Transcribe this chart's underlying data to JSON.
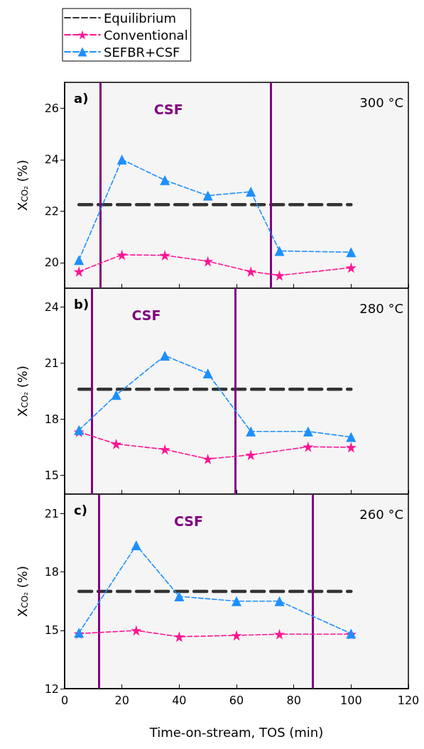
{
  "chart_data": [
    {
      "type": "line",
      "title": "a)",
      "subtitle": "300 °C",
      "ylabel": "X$_{CO₂}$ (%)",
      "xlim": [
        0,
        120
      ],
      "xticks": [
        0,
        20,
        40,
        60,
        80,
        100,
        120
      ],
      "ylim": [
        19,
        27
      ],
      "yticks": [
        20,
        22,
        24,
        26
      ],
      "tick_labels": "y",
      "legend": "top left",
      "line_style": "dashed",
      "grid": false,
      "series": [
        {
          "name": "Equilibrium",
          "color": "#333333",
          "marker": "none",
          "x": [
            5,
            100
          ],
          "values": [
            22.25,
            22.25
          ]
        },
        {
          "name": "Conventional",
          "color": "#ff1493",
          "marker": "star",
          "x": [
            5,
            20,
            35,
            50,
            65,
            75,
            100
          ],
          "values": [
            19.65,
            20.3,
            20.28,
            20.05,
            19.65,
            19.5,
            19.8
          ]
        },
        {
          "name": "SEFBR+CSF",
          "color": "#1e8fff",
          "marker": "triangle",
          "x": [
            5,
            20,
            35,
            50,
            65,
            75,
            100
          ],
          "values": [
            20.1,
            24.0,
            23.2,
            22.6,
            22.75,
            20.45,
            20.4
          ]
        }
      ],
      "ref_lines": [
        {
          "axis": "x",
          "value": 12.5,
          "color": "#800080"
        },
        {
          "axis": "x",
          "value": 72,
          "color": "#800080"
        }
      ],
      "annotations": [
        "CSF"
      ]
    },
    {
      "type": "line",
      "title": "b)",
      "subtitle": "280 °C",
      "ylabel": "X$_{CO₂}$ (%)",
      "xlim": [
        0,
        120
      ],
      "xticks": [
        0,
        20,
        40,
        60,
        80,
        100,
        120
      ],
      "ylim": [
        14,
        25
      ],
      "yticks": [
        15,
        18,
        21,
        24
      ],
      "tick_labels": "y",
      "line_style": "dashed",
      "grid": false,
      "series": [
        {
          "color": "#333333",
          "marker": "none",
          "x": [
            5,
            100
          ],
          "values": [
            19.6,
            19.6
          ]
        },
        {
          "color": "#ff1493",
          "marker": "star",
          "x": [
            5,
            18,
            35,
            50,
            65,
            85,
            100
          ],
          "values": [
            17.33,
            16.68,
            16.39,
            15.88,
            16.1,
            16.53,
            16.5
          ]
        },
        {
          "color": "#1e8fff",
          "marker": "triangle",
          "x": [
            5,
            18,
            35,
            50,
            65,
            85,
            100
          ],
          "values": [
            17.42,
            19.3,
            21.4,
            20.45,
            17.35,
            17.35,
            17.05
          ]
        }
      ],
      "ref_lines": [
        {
          "axis": "x",
          "value": 9.5,
          "color": "#800080"
        },
        {
          "axis": "x",
          "value": 59.5,
          "color": "#800080"
        }
      ],
      "annotations": [
        "CSF"
      ]
    },
    {
      "type": "line",
      "title": "c)",
      "subtitle": "260 °C",
      "xlabel": "Time-on-stream, TOS (min)",
      "ylabel": "X$_{CO₂}$ (%)",
      "xlim": [
        0,
        120
      ],
      "xticks": [
        0,
        20,
        40,
        60,
        80,
        100,
        120
      ],
      "ylim": [
        12,
        22
      ],
      "yticks": [
        12,
        15,
        18,
        21
      ],
      "line_style": "dashed",
      "grid": false,
      "series": [
        {
          "color": "#333333",
          "marker": "none",
          "x": [
            5,
            100
          ],
          "values": [
            17.0,
            17.0
          ]
        },
        {
          "color": "#ff1493",
          "marker": "star",
          "x": [
            5,
            25,
            40,
            60,
            75,
            100
          ],
          "values": [
            14.83,
            14.99,
            14.67,
            14.74,
            14.8,
            14.8
          ]
        },
        {
          "color": "#1e8fff",
          "marker": "triangle",
          "x": [
            5,
            25,
            40,
            60,
            75,
            100
          ],
          "values": [
            14.87,
            19.37,
            16.74,
            16.5,
            16.5,
            14.83
          ]
        }
      ],
      "ref_lines": [
        {
          "axis": "x",
          "value": 12,
          "color": "#800080"
        },
        {
          "axis": "x",
          "value": 86.5,
          "color": "#800080"
        }
      ],
      "annotations": [
        "CSF"
      ]
    }
  ]
}
